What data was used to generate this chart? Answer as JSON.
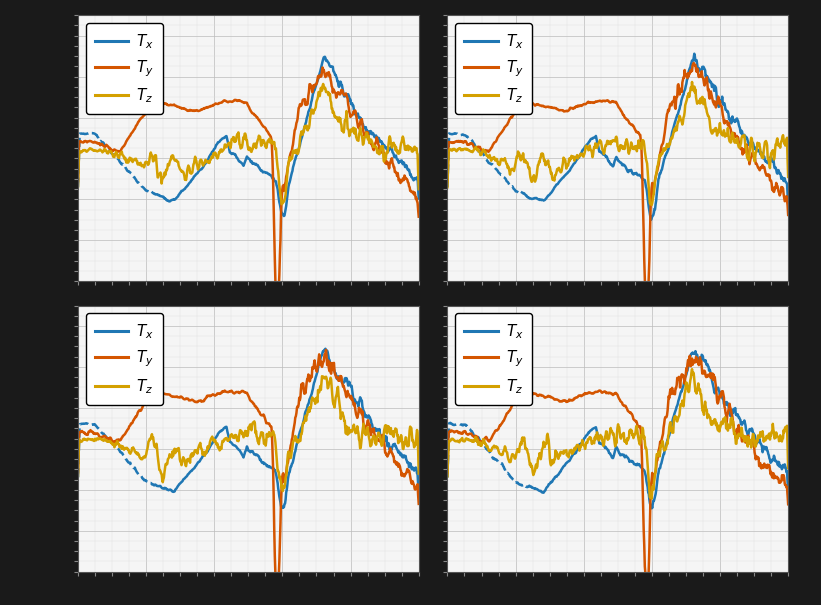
{
  "colors": {
    "Tx": "#1f77b4",
    "Ty": "#d45500",
    "Tz": "#d4a000",
    "bg": "#f5f5f5",
    "fig_bg": "#1a1a1a",
    "grid": "#cccccc"
  },
  "legend_labels": [
    "$T_x$",
    "$T_y$",
    "$T_z$"
  ],
  "n_subplots": 4,
  "figsize": [
    8.21,
    6.05
  ],
  "dpi": 100
}
